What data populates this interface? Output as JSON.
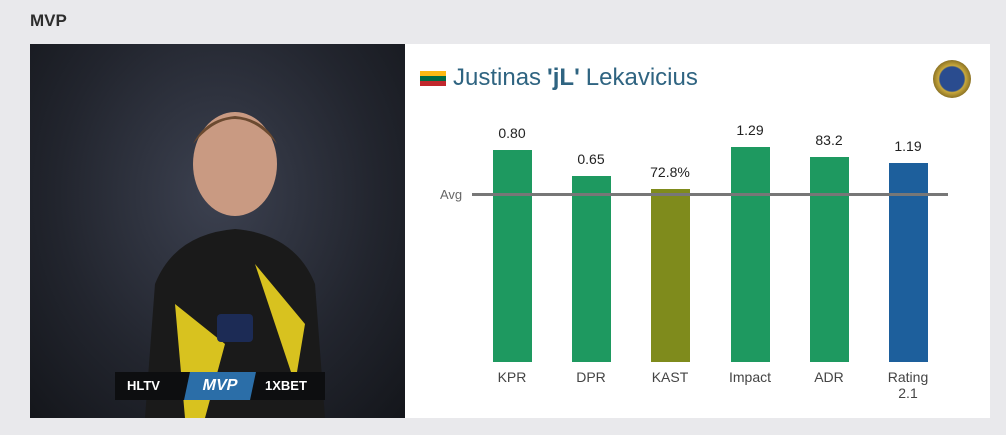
{
  "header": {
    "title": "MVP"
  },
  "photo": {
    "badges": [
      "HLTV",
      "MVP",
      "1XBET"
    ]
  },
  "player": {
    "first": "Justinas",
    "nick": "'jL'",
    "last": "Lekavicius"
  },
  "chart_data": {
    "type": "bar",
    "categories": [
      "KPR",
      "DPR",
      "KAST",
      "Impact",
      "ADR",
      "Rating 2.1"
    ],
    "values": [
      0.8,
      0.65,
      72.8,
      1.29,
      83.2,
      1.19
    ],
    "value_labels": [
      "0.80",
      "0.65",
      "72.8%",
      "1.29",
      "83.2",
      "1.19"
    ],
    "colors": [
      "#1e9960",
      "#1e9960",
      "#7f8b1c",
      "#1e9960",
      "#1e9960",
      "#1d5f9c"
    ],
    "reference_line": {
      "label": "Avg"
    }
  }
}
